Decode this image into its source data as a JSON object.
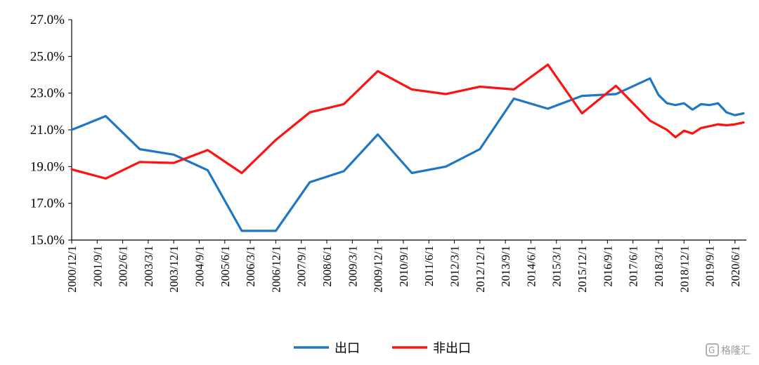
{
  "chart_data": {
    "type": "line",
    "title": "",
    "xlabel": "",
    "ylabel": "",
    "ylim": [
      15.0,
      27.0
    ],
    "yticks": [
      "15.0%",
      "17.0%",
      "19.0%",
      "21.0%",
      "23.0%",
      "25.0%",
      "27.0%"
    ],
    "x_tick_labels": [
      "2000/12/1",
      "2001/9/1",
      "2002/6/1",
      "2003/3/1",
      "2003/12/1",
      "2004/9/1",
      "2005/6/1",
      "2006/3/1",
      "2006/12/1",
      "2007/9/1",
      "2008/6/1",
      "2009/3/1",
      "2009/12/1",
      "2010/9/1",
      "2011/6/1",
      "2012/3/1",
      "2012/12/1",
      "2013/9/1",
      "2014/6/1",
      "2015/3/1",
      "2015/12/1",
      "2016/9/1",
      "2017/6/1",
      "2018/3/1",
      "2018/12/1",
      "2019/9/1",
      "2020/6/1"
    ],
    "grid": false,
    "legend_position": "bottom-center",
    "series": [
      {
        "name": "出口",
        "color": "#1F77C4",
        "points": [
          [
            "2000/12",
            21.0
          ],
          [
            "2001/12",
            21.75
          ],
          [
            "2002/12",
            19.95
          ],
          [
            "2003/12",
            19.65
          ],
          [
            "2004/12",
            18.8
          ],
          [
            "2005/12",
            15.5
          ],
          [
            "2006/12",
            15.5
          ],
          [
            "2007/12",
            18.15
          ],
          [
            "2008/12",
            18.75
          ],
          [
            "2009/12",
            20.75
          ],
          [
            "2010/12",
            18.65
          ],
          [
            "2011/12",
            19.0
          ],
          [
            "2012/12",
            19.95
          ],
          [
            "2013/12",
            22.7
          ],
          [
            "2014/12",
            22.15
          ],
          [
            "2015/12",
            22.85
          ],
          [
            "2016/12",
            22.95
          ],
          [
            "2017/12",
            23.8
          ],
          [
            "2018/03",
            22.9
          ],
          [
            "2018/06",
            22.45
          ],
          [
            "2018/09",
            22.35
          ],
          [
            "2018/12",
            22.45
          ],
          [
            "2019/03",
            22.1
          ],
          [
            "2019/06",
            22.4
          ],
          [
            "2019/09",
            22.35
          ],
          [
            "2019/12",
            22.45
          ],
          [
            "2020/03",
            21.95
          ],
          [
            "2020/06",
            21.8
          ],
          [
            "2020/09",
            21.9
          ]
        ]
      },
      {
        "name": "非出口",
        "color": "#FF1111",
        "points": [
          [
            "2000/12",
            18.85
          ],
          [
            "2001/12",
            18.35
          ],
          [
            "2002/12",
            19.25
          ],
          [
            "2003/12",
            19.2
          ],
          [
            "2004/12",
            19.9
          ],
          [
            "2005/12",
            18.65
          ],
          [
            "2006/12",
            20.45
          ],
          [
            "2007/12",
            21.95
          ],
          [
            "2008/12",
            22.4
          ],
          [
            "2009/12",
            24.2
          ],
          [
            "2010/12",
            23.2
          ],
          [
            "2011/12",
            22.95
          ],
          [
            "2012/12",
            23.35
          ],
          [
            "2013/12",
            23.2
          ],
          [
            "2014/12",
            24.55
          ],
          [
            "2015/12",
            21.9
          ],
          [
            "2016/12",
            23.4
          ],
          [
            "2017/12",
            21.5
          ],
          [
            "2018/03",
            21.25
          ],
          [
            "2018/06",
            21.0
          ],
          [
            "2018/09",
            20.6
          ],
          [
            "2018/12",
            20.95
          ],
          [
            "2019/03",
            20.8
          ],
          [
            "2019/06",
            21.1
          ],
          [
            "2019/09",
            21.2
          ],
          [
            "2019/12",
            21.3
          ],
          [
            "2020/03",
            21.25
          ],
          [
            "2020/06",
            21.3
          ],
          [
            "2020/09",
            21.4
          ]
        ]
      }
    ]
  },
  "watermark": {
    "text": "格隆汇",
    "icon": "glh-logo-icon"
  }
}
